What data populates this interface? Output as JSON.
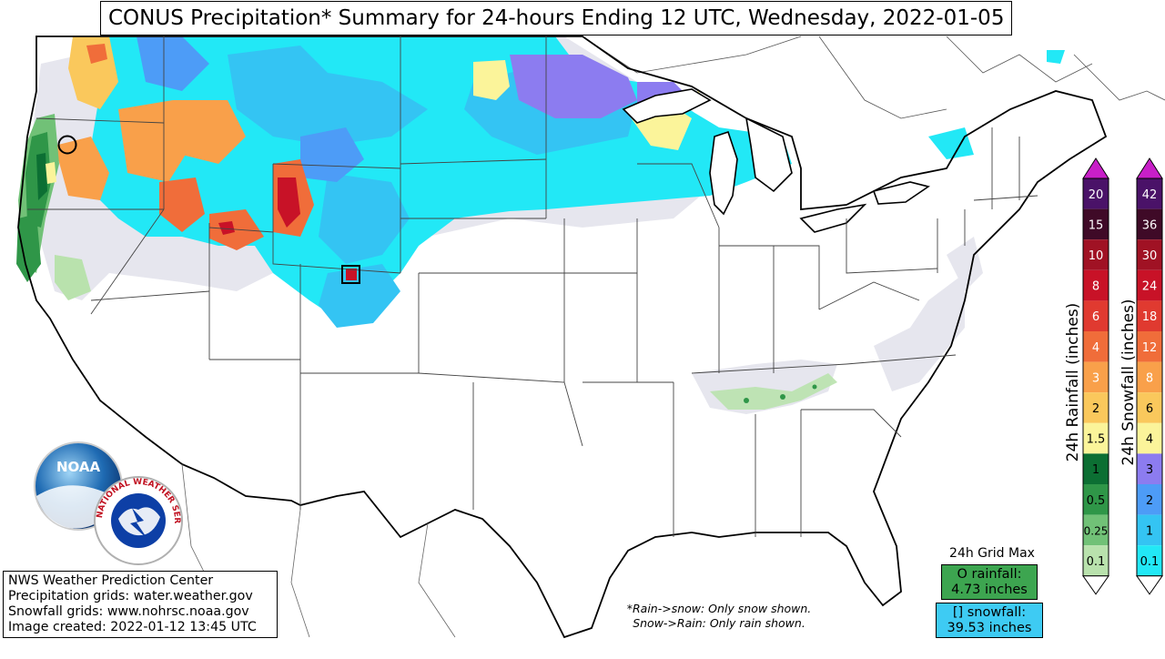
{
  "title": "CONUS Precipitation* Summary for 24-hours Ending 12 UTC, Wednesday, 2022-01-05",
  "info": {
    "line1": "NWS Weather Prediction Center",
    "line2": "Precipitation grids: water.weather.gov",
    "line3": "Snowfall grids: www.nohrsc.noaa.gov",
    "line4": "Image created: 2022-01-12 13:45 UTC"
  },
  "notes": {
    "line1": "*Rain->snow: Only snow shown.",
    "line2": "Snow->Rain: Only rain shown."
  },
  "grid_max": {
    "heading": "24h Grid Max",
    "rain_label": "O rainfall:",
    "rain_value": "4.73 inches",
    "snow_label": "[] snowfall:",
    "snow_value": "39.53 inches"
  },
  "rain_legend": {
    "label": "24h Rainfall (inches)",
    "items": [
      {
        "value": "20",
        "color": "#4a1268",
        "text_color": "#ffffff"
      },
      {
        "value": "15",
        "color": "#3f0a27",
        "text_color": "#ffffff"
      },
      {
        "value": "10",
        "color": "#a01224",
        "text_color": "#ffffff"
      },
      {
        "value": "8",
        "color": "#c81227",
        "text_color": "#ffffff"
      },
      {
        "value": "6",
        "color": "#e03a30",
        "text_color": "#ffffff"
      },
      {
        "value": "4",
        "color": "#f06d3a",
        "text_color": "#ffffff"
      },
      {
        "value": "3",
        "color": "#f9a04a",
        "text_color": "#ffffff"
      },
      {
        "value": "2",
        "color": "#fac85c",
        "text_color": "#000000"
      },
      {
        "value": "1.5",
        "color": "#fbf49a",
        "text_color": "#000000"
      },
      {
        "value": "1",
        "color": "#0c6f33",
        "text_color": "#000000"
      },
      {
        "value": "0.5",
        "color": "#2f9648",
        "text_color": "#000000"
      },
      {
        "value": "0.25",
        "color": "#71c177",
        "text_color": "#000000"
      },
      {
        "value": "0.1",
        "color": "#b9e2ad",
        "text_color": "#000000"
      }
    ],
    "top_color": "#c81fc8",
    "bottom_color": "#ffffff"
  },
  "snow_legend": {
    "label": "24h Snowfall (inches)",
    "items": [
      {
        "value": "42",
        "color": "#4a1268",
        "text_color": "#ffffff"
      },
      {
        "value": "36",
        "color": "#3f0a27",
        "text_color": "#ffffff"
      },
      {
        "value": "30",
        "color": "#a01224",
        "text_color": "#ffffff"
      },
      {
        "value": "24",
        "color": "#c81227",
        "text_color": "#ffffff"
      },
      {
        "value": "18",
        "color": "#e03a30",
        "text_color": "#ffffff"
      },
      {
        "value": "12",
        "color": "#f06d3a",
        "text_color": "#ffffff"
      },
      {
        "value": "8",
        "color": "#f9a04a",
        "text_color": "#ffffff"
      },
      {
        "value": "6",
        "color": "#fac85c",
        "text_color": "#000000"
      },
      {
        "value": "4",
        "color": "#fbf49a",
        "text_color": "#000000"
      },
      {
        "value": "3",
        "color": "#8c7cf0",
        "text_color": "#000000"
      },
      {
        "value": "2",
        "color": "#4d9cf7",
        "text_color": "#000000"
      },
      {
        "value": "1",
        "color": "#34c4f3",
        "text_color": "#000000"
      },
      {
        "value": "0.1",
        "color": "#22e8f6",
        "text_color": "#000000"
      }
    ],
    "top_color": "#c81fc8",
    "bottom_color": "#ffffff"
  },
  "logos": {
    "noaa": "NOAA",
    "nws": "NATIONAL WEATHER SERVICE"
  },
  "icons": {
    "rain_max_marker": "circle-marker-icon",
    "snow_max_marker": "square-marker-icon"
  },
  "colors": {
    "trace_gray": "#e6e6ee",
    "snow_cyan": "#22e8f6",
    "snow_light_blue": "#34c4f3",
    "snow_violet": "#8c7cf0",
    "rain_green": "#2f9648"
  }
}
